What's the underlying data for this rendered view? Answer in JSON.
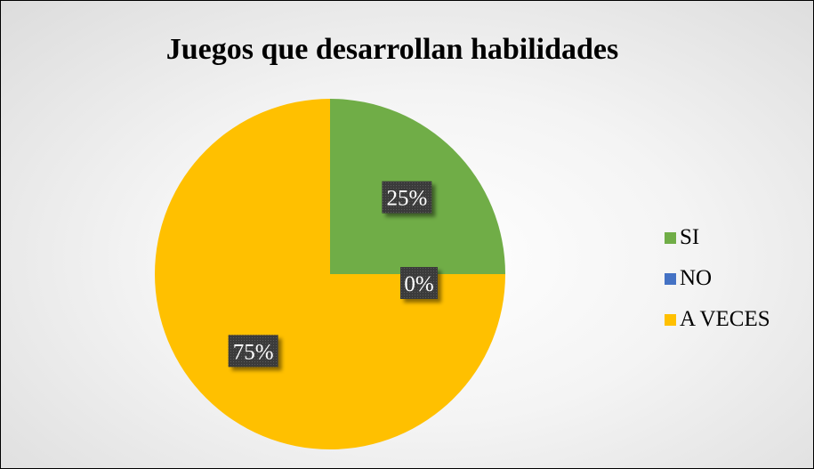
{
  "chart_data": {
    "type": "pie",
    "title": "Juegos que  desarrollan habilidades",
    "categories": [
      "SI",
      "NO",
      "A VECES"
    ],
    "values": [
      25,
      0,
      75
    ],
    "data_labels": [
      "25%",
      "0%",
      "75%"
    ],
    "colors": [
      "#70ad47",
      "#4472c4",
      "#ffc000"
    ],
    "legend_position": "right"
  }
}
